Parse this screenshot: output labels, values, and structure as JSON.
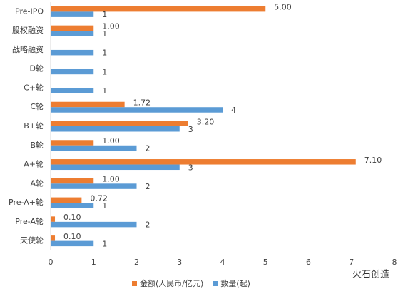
{
  "chart_data": {
    "type": "hbar",
    "categories": [
      "Pre-IPO",
      "股权融资",
      "战略融资",
      "D轮",
      "C+轮",
      "C轮",
      "B+轮",
      "B轮",
      "A+轮",
      "A轮",
      "Pre-A+轮",
      "Pre-A轮",
      "天使轮"
    ],
    "series": [
      {
        "name": "金额(人民币/亿元)",
        "color": "#ed7d31",
        "values": [
          5,
          1,
          null,
          null,
          null,
          1.72,
          3.2,
          1,
          7.1,
          1,
          0.72,
          0.1,
          0.1
        ],
        "value_labels": [
          "5.00",
          "1.00",
          null,
          null,
          null,
          "1.72",
          "3.20",
          "1.00",
          "7.10",
          "1.00",
          "0.72",
          "0.10",
          "0.10"
        ]
      },
      {
        "name": "数量(起)",
        "color": "#5b9bd5",
        "values": [
          1,
          1,
          1,
          1,
          1,
          4,
          3,
          2,
          3,
          2,
          1,
          2,
          1
        ]
      }
    ],
    "xlim": [
      0,
      8
    ],
    "xticks": [
      0,
      1,
      2,
      3,
      4,
      5,
      6,
      7,
      8
    ],
    "legend": "bottom",
    "watermark": "火石创造"
  }
}
